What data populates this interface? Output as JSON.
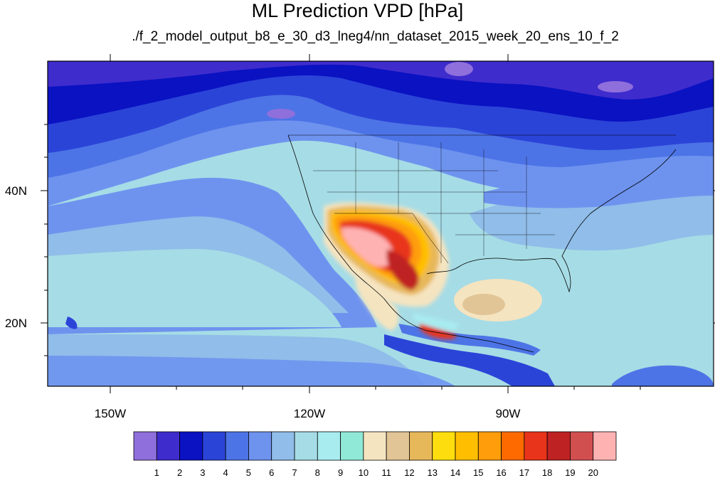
{
  "title": "ML Prediction VPD [hPa]",
  "subtitle": "./f_2_model_output_b8_e_30_d3_lneg4/nn_dataset_2015_week_20_ens_10_f_2",
  "lon_ticks": [
    "150W",
    "120W",
    "90W"
  ],
  "lat_ticks": [
    "40N",
    "20N"
  ],
  "colorbar": {
    "labels": [
      "1",
      "2",
      "3",
      "4",
      "5",
      "6",
      "7",
      "8",
      "9",
      "10",
      "11",
      "12",
      "13",
      "14",
      "15",
      "16",
      "17",
      "18",
      "19",
      "20"
    ],
    "colors": [
      "#8f6fdc",
      "#3f2ccc",
      "#0a12c2",
      "#2b44d8",
      "#4d74e6",
      "#6e93ef",
      "#90bde9",
      "#a6dce6",
      "#a8ecf0",
      "#90e8d6",
      "#f5e4c0",
      "#e2c596",
      "#e7b85a",
      "#fedd0e",
      "#ffbf00",
      "#ff9d0a",
      "#ff6a00",
      "#e8341a",
      "#bf2222",
      "#d24f4f",
      "#ffb2b2"
    ]
  }
}
